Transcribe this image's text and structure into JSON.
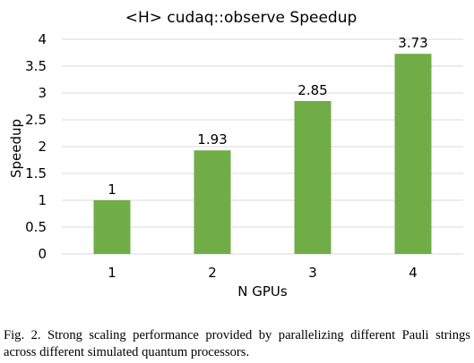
{
  "chart_data": {
    "type": "bar",
    "title": "<H> cudaq::observe Speedup",
    "xlabel": "N GPUs",
    "ylabel": "Speedup",
    "categories": [
      "1",
      "2",
      "3",
      "4"
    ],
    "values": [
      1,
      1.93,
      2.85,
      3.73
    ],
    "data_labels": [
      "1",
      "1.93",
      "2.85",
      "3.73"
    ],
    "ylim": [
      0,
      4
    ],
    "yticks": [
      "0",
      "0.5",
      "1",
      "1.5",
      "2",
      "2.5",
      "3",
      "3.5",
      "4"
    ],
    "grid": true,
    "legend": "none",
    "bar_color": "#70ad47",
    "grid_color": "#d9d9d9"
  },
  "caption": "Fig. 2.  Strong scaling performance provided by parallelizing different Pauli strings across different simulated quantum processors."
}
